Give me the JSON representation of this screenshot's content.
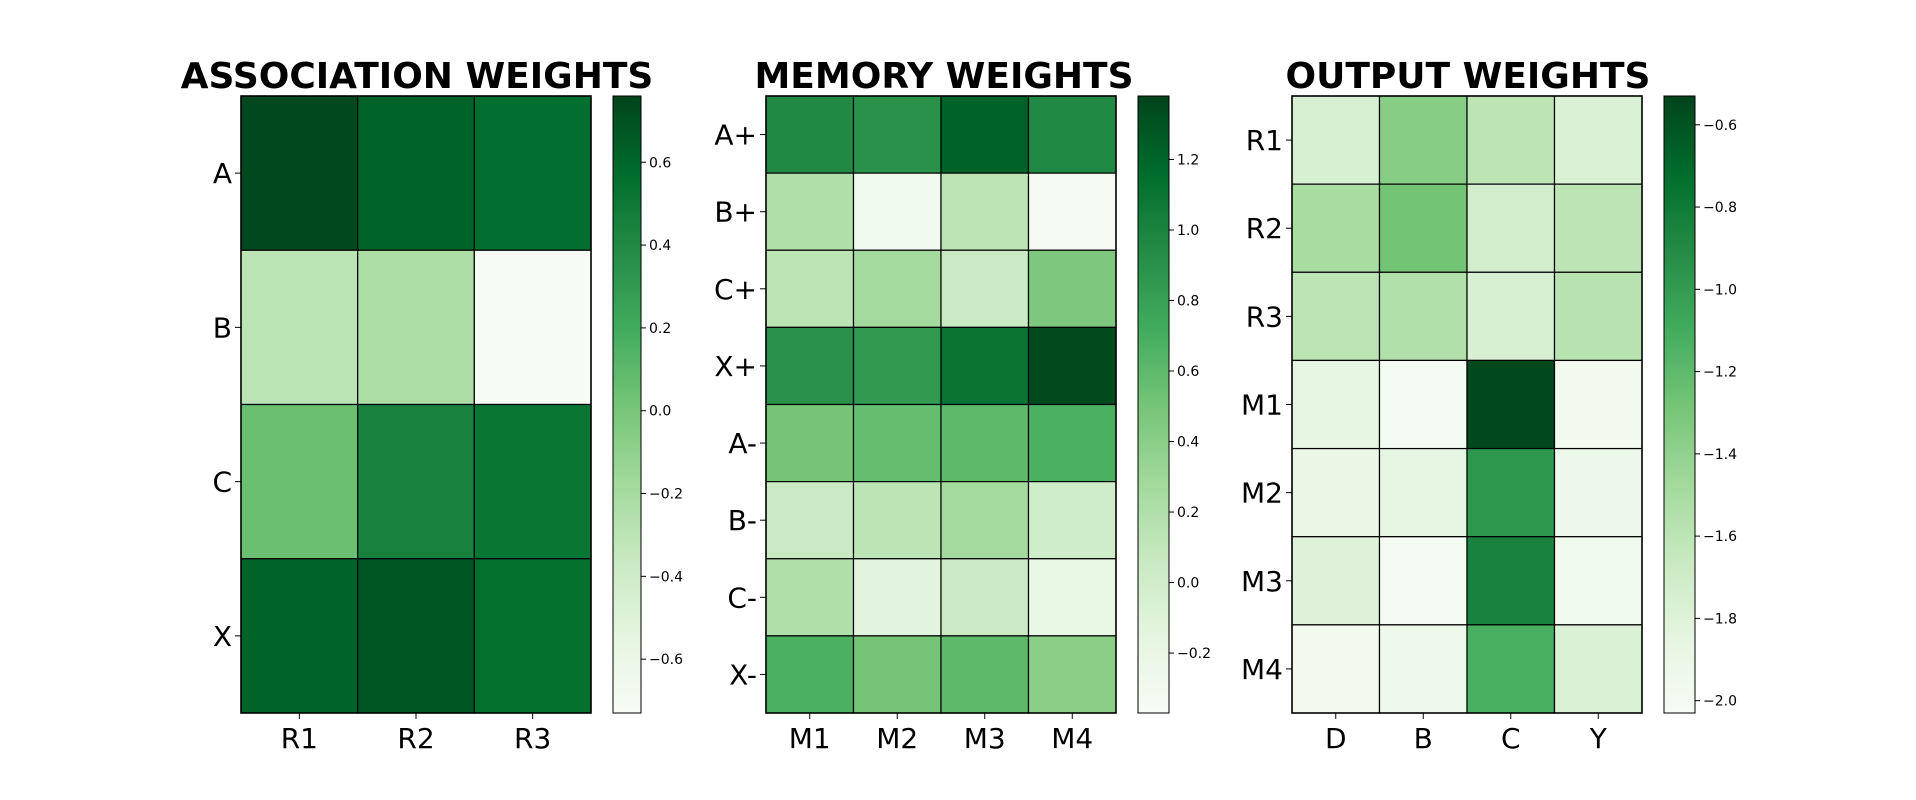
{
  "chart_data": [
    {
      "type": "heatmap",
      "title": "ASSOCIATION WEIGHTS",
      "colormap": "Greens",
      "rows": [
        "A",
        "B",
        "C",
        "X"
      ],
      "columns": [
        "R1",
        "R2",
        "R3"
      ],
      "values": [
        [
          0.74,
          0.62,
          0.56
        ],
        [
          -0.3,
          -0.22,
          -0.72
        ],
        [
          0.05,
          0.45,
          0.52
        ],
        [
          0.62,
          0.68,
          0.55
        ]
      ],
      "colorbar": {
        "range": [
          -0.73,
          0.76
        ],
        "ticks": [
          -0.6,
          -0.4,
          -0.2,
          0.0,
          0.2,
          0.4,
          0.6
        ],
        "tick_labels": [
          "−0.6",
          "−0.4",
          "−0.2",
          "0.0",
          "0.2",
          "0.4",
          "0.6"
        ]
      }
    },
    {
      "type": "heatmap",
      "title": "MEMORY WEIGHTS",
      "colormap": "Greens",
      "rows": [
        "A+",
        "B+",
        "C+",
        "X+",
        "A-",
        "B-",
        "C-",
        "X-"
      ],
      "columns": [
        "M1",
        "M2",
        "M3",
        "M4"
      ],
      "values": [
        [
          0.96,
          0.9,
          1.22,
          0.96
        ],
        [
          0.2,
          -0.3,
          0.13,
          -0.35
        ],
        [
          0.13,
          0.27,
          0.05,
          0.46
        ],
        [
          0.9,
          0.84,
          1.1,
          1.35
        ],
        [
          0.5,
          0.57,
          0.6,
          0.68
        ],
        [
          0.05,
          0.13,
          0.27,
          0.0
        ],
        [
          0.2,
          -0.13,
          0.05,
          -0.2
        ],
        [
          0.68,
          0.5,
          0.6,
          0.4
        ]
      ],
      "colorbar": {
        "range": [
          -0.37,
          1.38
        ],
        "ticks": [
          -0.2,
          0.0,
          0.2,
          0.4,
          0.6,
          0.8,
          1.0,
          1.2
        ],
        "tick_labels": [
          "−0.2",
          "0.0",
          "0.2",
          "0.4",
          "0.6",
          "0.8",
          "1.0",
          "1.2"
        ]
      }
    },
    {
      "type": "heatmap",
      "title": "OUTPUT WEIGHTS",
      "colormap": "Greens",
      "rows": [
        "R1",
        "R2",
        "R3",
        "M1",
        "M2",
        "M3",
        "M4"
      ],
      "columns": [
        "D",
        "B",
        "C",
        "Y"
      ],
      "values": [
        [
          -1.76,
          -1.36,
          -1.6,
          -1.78
        ],
        [
          -1.5,
          -1.28,
          -1.72,
          -1.6
        ],
        [
          -1.6,
          -1.55,
          -1.76,
          -1.58
        ],
        [
          -1.86,
          -2.0,
          -0.55,
          -1.98
        ],
        [
          -1.9,
          -1.86,
          -0.98,
          -1.92
        ],
        [
          -1.8,
          -2.0,
          -0.85,
          -1.96
        ],
        [
          -1.98,
          -1.94,
          -1.12,
          -1.78
        ]
      ],
      "colorbar": {
        "range": [
          -2.03,
          -0.53
        ],
        "ticks": [
          -2.0,
          -1.8,
          -1.6,
          -1.4,
          -1.2,
          -1.0,
          -0.8,
          -0.6
        ],
        "tick_labels": [
          "−2.0",
          "−1.8",
          "−1.6",
          "−1.4",
          "−1.2",
          "−1.0",
          "−0.8",
          "−0.6"
        ]
      }
    }
  ]
}
